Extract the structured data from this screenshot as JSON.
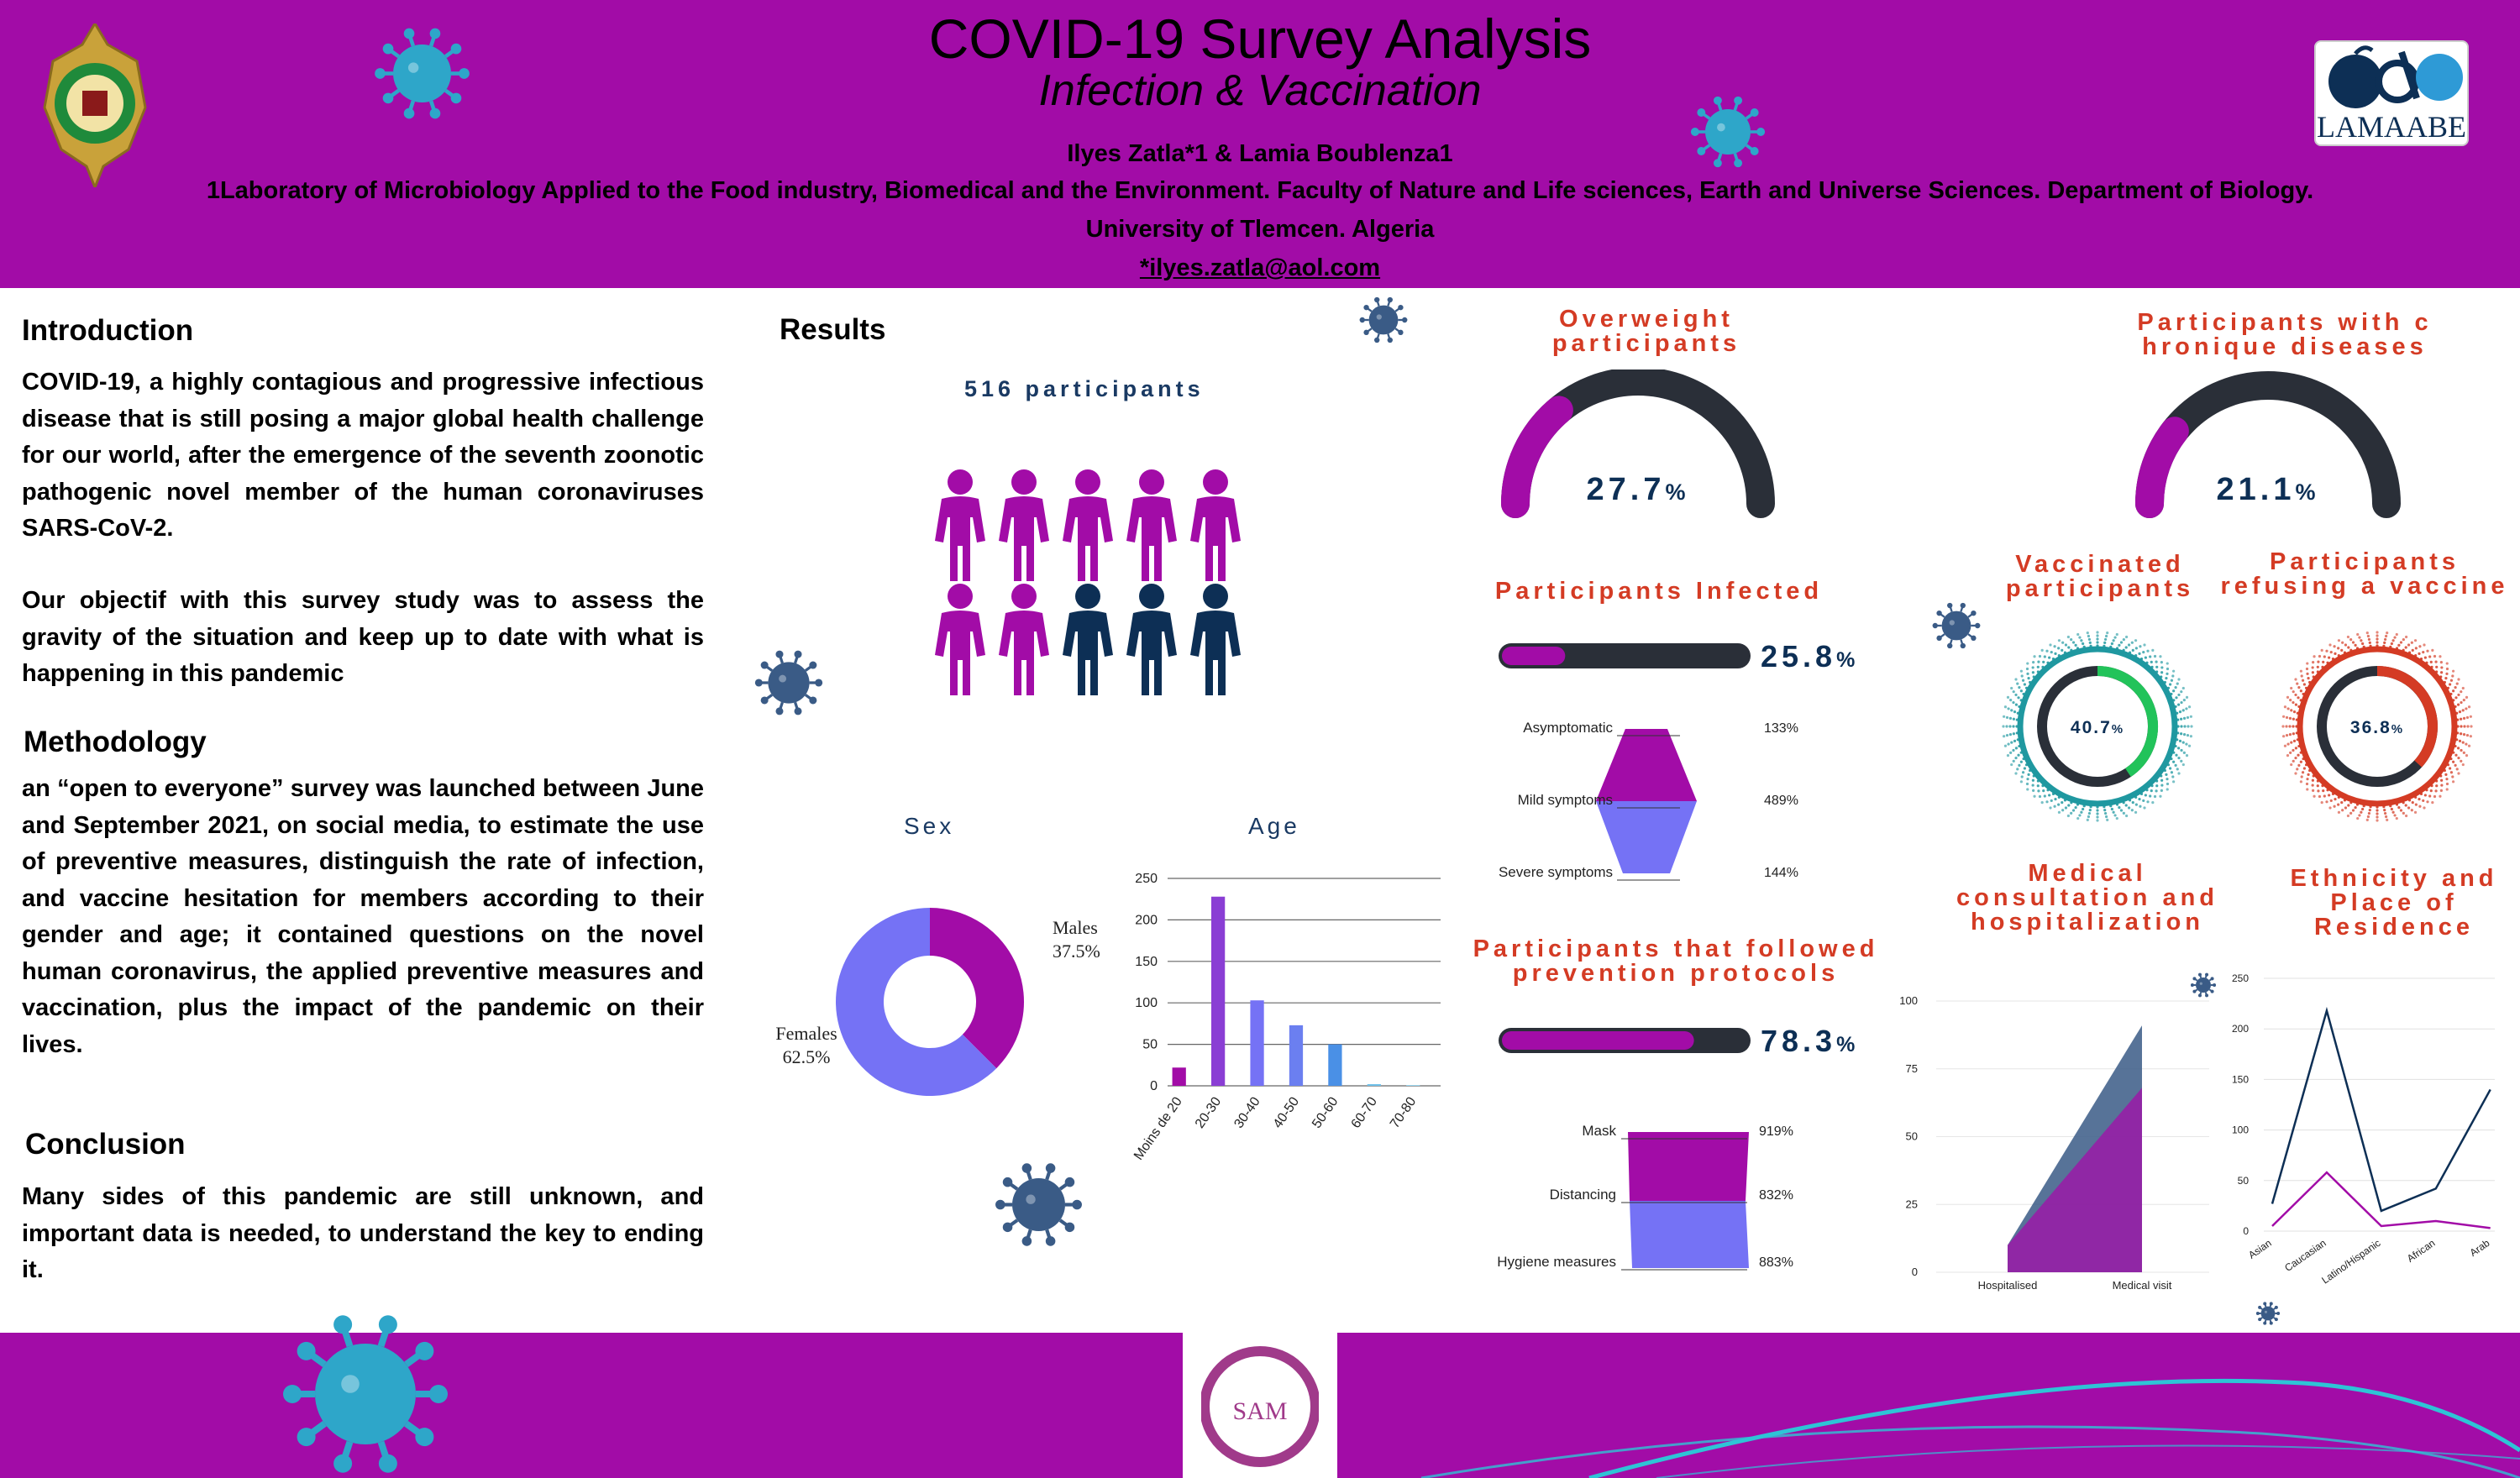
{
  "header": {
    "title": "COVID-19 Survey Analysis",
    "subtitle": "Infection & Vaccination",
    "authors": "Ilyes Zatla*1 & Lamia Boublenza1",
    "affiliation_line1": "1Laboratory of Microbiology Applied to the Food industry, Biomedical and the Environment. Faculty of Nature and Life sciences, Earth and Universe Sciences. Department of Biology.",
    "affiliation_line2": "University of Tlemcen. Algeria",
    "email": "*ilyes.zatla@aol.com",
    "logo_right_text": "LAMAABE"
  },
  "introduction": {
    "heading": "Introduction",
    "p1": "COVID-19, a highly contagious and progressive infectious disease that is still posing a major global health challenge for our world, after the emergence of the seventh zoonotic pathogenic novel member of the human coronaviruses SARS-CoV-2.",
    "p2": "Our objectif with this survey study was to assess the gravity of the situation and keep up to date with what is happening in this pandemic"
  },
  "methodology": {
    "heading": "Methodology",
    "text": "an “open to everyone” survey was launched between June and September 2021, on social media, to estimate the use of preventive measures, distinguish the rate of infection, and vaccine hesitation for members according to their gender and age; it contained questions on the novel human coronavirus, the applied preventive measures and vaccination, plus the impact of the pandemic on their lives."
  },
  "conclusion": {
    "heading": "Conclusion",
    "text": "Many sides of this pandemic are still unknown, and important data is needed, to understand the key to ending it."
  },
  "results": {
    "heading": "Results",
    "participants_label": "516 participants"
  },
  "colors": {
    "purple": "#a20ca7",
    "navy": "#0d2f55",
    "periwinkle": "#7572f5",
    "dark_track": "#2a2f38",
    "red_title": "#d43b24",
    "virus_blue": "#3a5b86",
    "virus_cyan": "#2ea6c9"
  },
  "icons": {
    "people": "person-icon",
    "virus": "virus-icon"
  },
  "chart_data": [
    {
      "id": "sex",
      "type": "pie",
      "title": "Sex",
      "labels": [
        "Males",
        "Females"
      ],
      "values": [
        37.5,
        62.5
      ],
      "value_labels": [
        "37.5%",
        "62.5%"
      ],
      "colors": [
        "#a20ca7",
        "#7572f5"
      ]
    },
    {
      "id": "age",
      "type": "bar",
      "title": "Age",
      "categories": [
        "Moins de 20",
        "20-30",
        "30-40",
        "40-50",
        "50-60",
        "60-70",
        "70-80"
      ],
      "values": [
        22,
        228,
        103,
        73,
        50,
        2,
        1
      ],
      "colors": [
        "#a20ca7",
        "#8a3ed4",
        "#7572f5",
        "#6b7ff0",
        "#4a90e6",
        "#6ec0ea",
        "#9ad6ef"
      ],
      "yticks": [
        "0",
        "50",
        "100",
        "150",
        "200",
        "250"
      ],
      "ylim": [
        0,
        250
      ]
    },
    {
      "id": "overweight",
      "type": "gauge",
      "title": "Overweight participants",
      "value": 27.7,
      "value_text": "27.7",
      "unit": "%"
    },
    {
      "id": "chronic",
      "type": "gauge",
      "title": "Participants with c hronique diseases",
      "value": 21.1,
      "value_text": "21.1",
      "unit": "%"
    },
    {
      "id": "infected",
      "type": "progress",
      "title": "Participants Infected",
      "value": 25.8,
      "value_text": "25.8",
      "unit": "%"
    },
    {
      "id": "symptoms",
      "type": "funnel",
      "labels": [
        "Asymptomatic",
        "Mild symptoms",
        "Severe symptoms"
      ],
      "value_labels": [
        "133%",
        "489%",
        "144%"
      ]
    },
    {
      "id": "prevention",
      "type": "progress",
      "title": "Participants that followed prevention protocols",
      "value": 78.3,
      "value_text": "78.3",
      "unit": "%"
    },
    {
      "id": "measures",
      "type": "funnel",
      "labels": [
        "Mask",
        "Distancing",
        "Hygiene measures"
      ],
      "value_labels": [
        "919%",
        "832%",
        "883%"
      ]
    },
    {
      "id": "vaccinated",
      "type": "ring",
      "title": "Vaccinated participants",
      "value": 40.7,
      "value_text": "40.7",
      "unit": "%"
    },
    {
      "id": "refusing",
      "type": "ring",
      "title": "Participants refusing a vaccine",
      "value": 36.8,
      "value_text": "36.8",
      "unit": "%"
    },
    {
      "id": "medical",
      "type": "area",
      "title": "Medical consultation and hospitalization",
      "x": [
        "Hospitalised",
        "Medical visit"
      ],
      "series": [
        {
          "values": [
            10,
            91
          ]
        },
        {
          "values": [
            10,
            68
          ]
        }
      ],
      "yticks": [
        "0",
        "25",
        "50",
        "75",
        "100"
      ],
      "ylim": [
        0,
        100
      ]
    },
    {
      "id": "ethnicity",
      "type": "line",
      "title": "Ethnicity and Place of Residence",
      "x": [
        "Asian",
        "Caucasian",
        "Latino/Hispanic",
        "African",
        "Arab"
      ],
      "series": [
        {
          "values": [
            27,
            218,
            20,
            42,
            140
          ]
        },
        {
          "values": [
            5,
            58,
            5,
            10,
            3
          ]
        }
      ],
      "yticks": [
        "0",
        "50",
        "100",
        "150",
        "200",
        "250"
      ],
      "ylim": [
        0,
        250
      ]
    }
  ],
  "footer": {
    "logo_text_sam": "SAM"
  }
}
